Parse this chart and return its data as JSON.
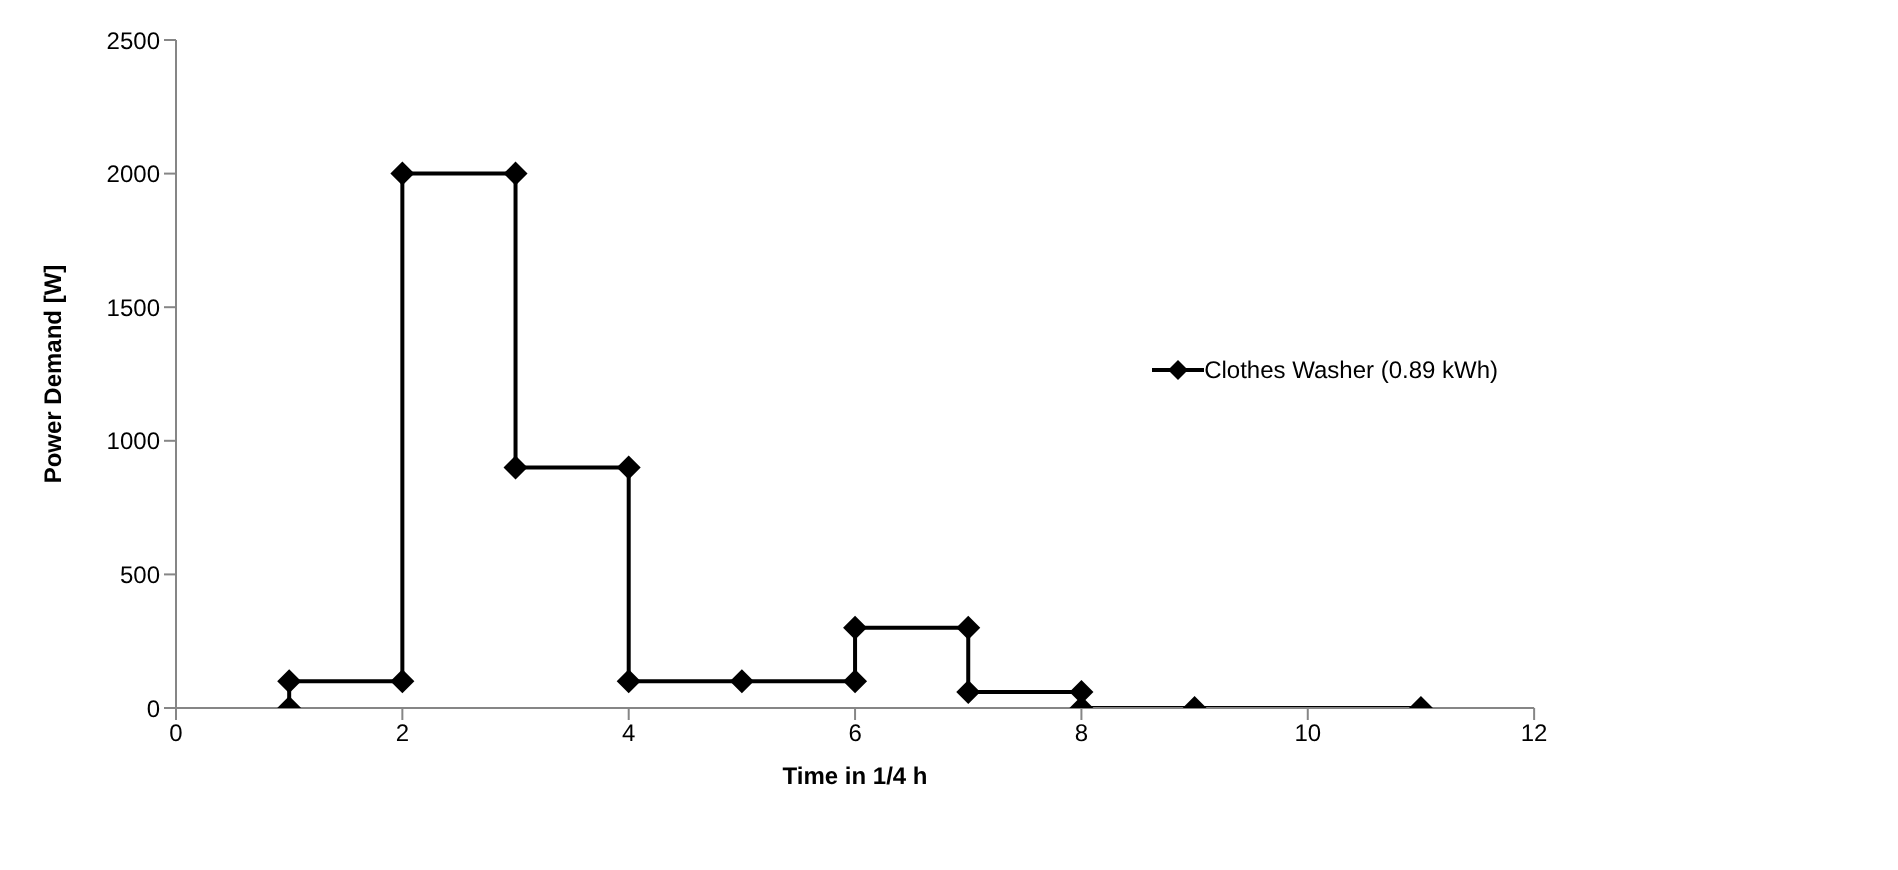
{
  "chart_data": {
    "type": "line",
    "xlabel": "Time in 1/4 h",
    "ylabel": "Power Demand [W]",
    "series": [
      {
        "name": "Clothes Washer (0.89 kWh)",
        "color": "#000000",
        "x": [
          1,
          1,
          2,
          2,
          3,
          3,
          4,
          4,
          5,
          6,
          6,
          7,
          7,
          8,
          8,
          9,
          11
        ],
        "values": [
          0,
          100,
          100,
          2000,
          2000,
          900,
          900,
          100,
          100,
          100,
          300,
          300,
          60,
          60,
          0,
          0,
          0
        ]
      }
    ],
    "xlim": [
      0,
      12
    ],
    "xticks": [
      0,
      2,
      4,
      6,
      8,
      10,
      12
    ],
    "ylim": [
      0,
      2500
    ],
    "yticks": [
      0,
      500,
      1000,
      1500,
      2000,
      2500
    ],
    "grid": false,
    "legend": "right",
    "marker": "diamond",
    "line_style": "solid"
  }
}
